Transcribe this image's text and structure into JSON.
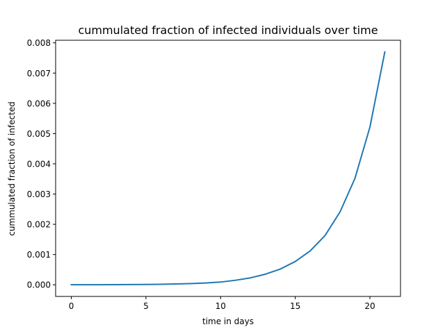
{
  "chart_data": {
    "type": "line",
    "title": "cummulated fraction of infected individuals over time",
    "xlabel": "time in days",
    "ylabel": "cummulated fraction of infected",
    "xlim": [
      -1.05,
      22.05
    ],
    "ylim": [
      -0.000385,
      0.008085
    ],
    "xticks": [
      0,
      5,
      10,
      15,
      20
    ],
    "xtick_labels": [
      "0",
      "5",
      "10",
      "15",
      "20"
    ],
    "yticks": [
      0,
      0.001,
      0.002,
      0.003,
      0.004,
      0.005,
      0.006,
      0.007,
      0.008
    ],
    "ytick_labels": [
      "0.000",
      "0.001",
      "0.002",
      "0.003",
      "0.004",
      "0.005",
      "0.006",
      "0.007",
      "0.008"
    ],
    "grid": false,
    "series": [
      {
        "color": "#1f77b4",
        "x": [
          0,
          1,
          2,
          3,
          4,
          5,
          6,
          7,
          8,
          9,
          10,
          11,
          12,
          13,
          14,
          15,
          16,
          17,
          18,
          19,
          20,
          21
        ],
        "y": [
          1e-06,
          2e-06,
          3e-06,
          5e-06,
          8e-06,
          1.2e-05,
          1.8e-05,
          2.7e-05,
          4e-05,
          6e-05,
          9e-05,
          0.00015,
          0.00023,
          0.00035,
          0.00052,
          0.00077,
          0.00112,
          0.00163,
          0.00241,
          0.00352,
          0.00521,
          0.0077
        ]
      }
    ]
  }
}
